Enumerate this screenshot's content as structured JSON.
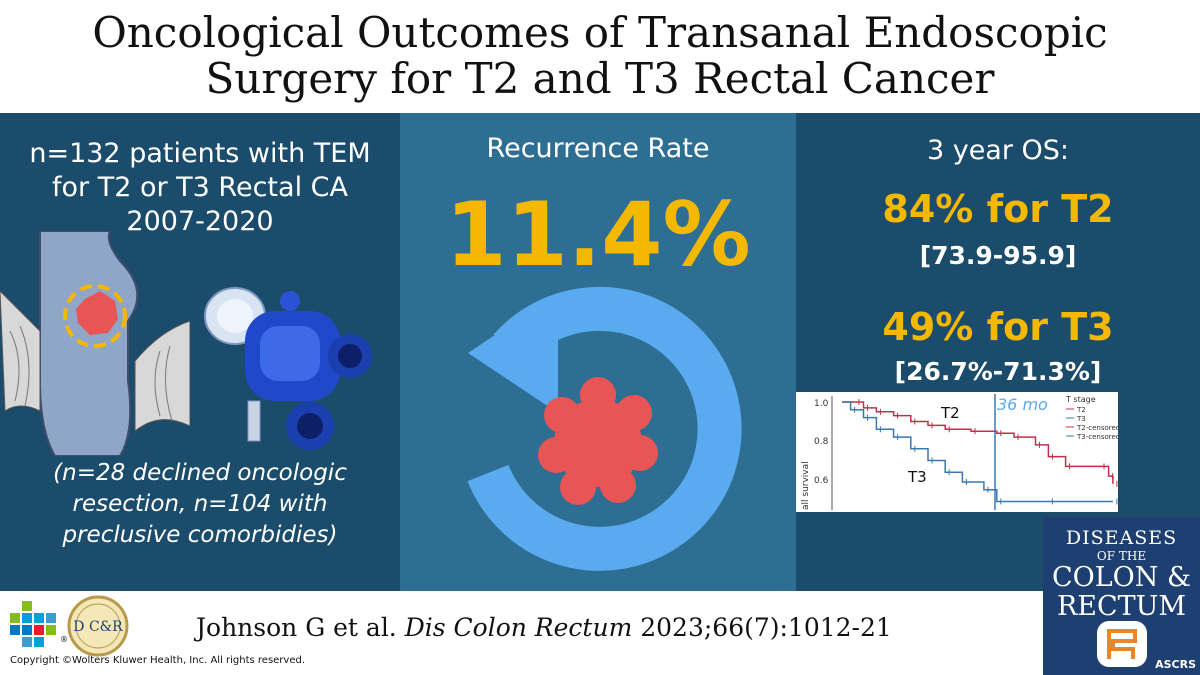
{
  "title": {
    "line1": "Oncological Outcomes of Transanal Endoscopic",
    "line2": "Surgery for T2 and T3 Rectal Cancer"
  },
  "left": {
    "line1": "n=132 patients with TEM",
    "line2": "for T2 or T3 Rectal CA",
    "line3": "2007-2020",
    "note1": "(n=28 declined oncologic",
    "note2": "resection, n=104 with",
    "note3": "preclusive comorbidies)"
  },
  "middle": {
    "label": "Recurrence Rate",
    "value": "11.4%"
  },
  "right": {
    "os_label": "3 year OS:",
    "t2": "84% for T2",
    "t2_ci": "[73.9-95.9]",
    "t3": "49% for T3",
    "t3_ci": "[26.7%-71.3%]"
  },
  "km_plot": {
    "y_ticks": [
      "1.0",
      "0.8",
      "0.6"
    ],
    "y_axis_label": "all survival",
    "curve_labels": [
      "T2",
      "T3"
    ],
    "marker_label": "36 mo",
    "legend_title": "T stage",
    "legend": [
      "T2",
      "T3",
      "T2-censored",
      "T3-censored"
    ],
    "curve_colors": {
      "T2": "#c0304a",
      "T3": "#3a78b0"
    },
    "t2_curve": [
      [
        0,
        1.0
      ],
      [
        3,
        1.0
      ],
      [
        5,
        0.97
      ],
      [
        8,
        0.95
      ],
      [
        12,
        0.93
      ],
      [
        16,
        0.9
      ],
      [
        20,
        0.88
      ],
      [
        24,
        0.86
      ],
      [
        30,
        0.85
      ],
      [
        36,
        0.84
      ],
      [
        40,
        0.82
      ],
      [
        45,
        0.78
      ],
      [
        48,
        0.72
      ],
      [
        52,
        0.67
      ],
      [
        60,
        0.67
      ],
      [
        62,
        0.62
      ],
      [
        63,
        0.58
      ]
    ],
    "t3_curve": [
      [
        0,
        1.0
      ],
      [
        2,
        0.96
      ],
      [
        5,
        0.92
      ],
      [
        8,
        0.86
      ],
      [
        12,
        0.82
      ],
      [
        16,
        0.76
      ],
      [
        20,
        0.7
      ],
      [
        24,
        0.64
      ],
      [
        28,
        0.59
      ],
      [
        33,
        0.55
      ],
      [
        36,
        0.49
      ],
      [
        48,
        0.49
      ],
      [
        63,
        0.49
      ]
    ]
  },
  "footer": {
    "citation_authors": "Johnson G et al. ",
    "citation_journal": "Dis Colon Rectum",
    "citation_detail": " 2023;66(7):1012-21",
    "copyright": "Copyright ©Wolters Kluwer Health, Inc. All rights reserved.",
    "logo_letters": "D C&R",
    "logo_registered": "®"
  },
  "journal": {
    "line1": "DISEASES",
    "line2": "OF THE",
    "line3": "COLON &",
    "line4": "RECTUM",
    "badge": "ASCRS"
  },
  "colors": {
    "panel": "#1b4c6b",
    "panel_mid": "#2e6e92",
    "accent": "#f5b800",
    "arrow": "#5aaaf0",
    "tumor": "#e85555"
  }
}
